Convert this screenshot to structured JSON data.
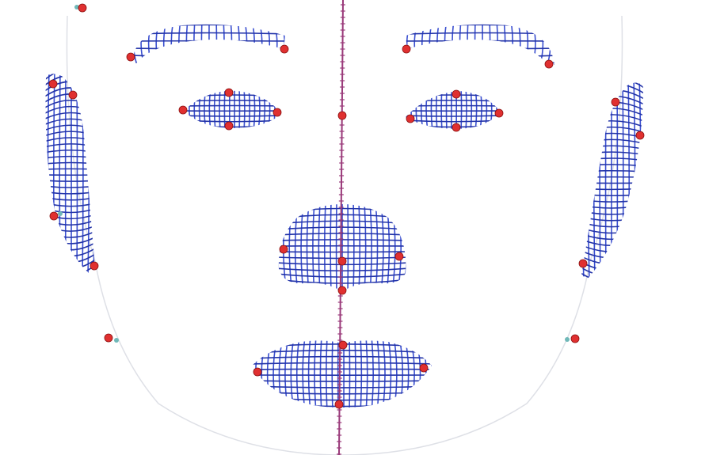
{
  "figure": {
    "subject": "face-mesh-landmarks",
    "mesh_color": "#3a4fd0",
    "mesh_dark": "#2233a8",
    "landmark_color": "#e03030",
    "landmark_stroke": "#8a1010",
    "midline_color": "#9a3a7a",
    "outline_color": "#c8ccd6",
    "aux_marker_color": "#6fb8b8"
  },
  "regions": [
    {
      "name": "left-eyebrow",
      "kind": "brow"
    },
    {
      "name": "right-eyebrow",
      "kind": "brow"
    },
    {
      "name": "left-eye",
      "kind": "eye"
    },
    {
      "name": "right-eye",
      "kind": "eye"
    },
    {
      "name": "left-ear",
      "kind": "ear"
    },
    {
      "name": "right-ear",
      "kind": "ear"
    },
    {
      "name": "nose",
      "kind": "nose"
    },
    {
      "name": "lips",
      "kind": "lips"
    }
  ],
  "landmarks": [
    {
      "name": "forehead-top-left"
    },
    {
      "name": "left-brow-outer"
    },
    {
      "name": "left-brow-inner"
    },
    {
      "name": "right-brow-inner"
    },
    {
      "name": "right-brow-outer"
    },
    {
      "name": "left-eye-outer"
    },
    {
      "name": "left-eye-top"
    },
    {
      "name": "left-eye-inner"
    },
    {
      "name": "left-eye-bottom"
    },
    {
      "name": "right-eye-inner"
    },
    {
      "name": "right-eye-top"
    },
    {
      "name": "right-eye-outer"
    },
    {
      "name": "right-eye-bottom"
    },
    {
      "name": "nasion"
    },
    {
      "name": "left-ear-top"
    },
    {
      "name": "left-ear-upper"
    },
    {
      "name": "left-ear-mid"
    },
    {
      "name": "left-ear-lobe"
    },
    {
      "name": "right-ear-top"
    },
    {
      "name": "right-ear-upper"
    },
    {
      "name": "right-ear-lobe"
    },
    {
      "name": "nose-left-ala"
    },
    {
      "name": "nose-tip"
    },
    {
      "name": "nose-right-ala"
    },
    {
      "name": "subnasale"
    },
    {
      "name": "left-jaw"
    },
    {
      "name": "right-jaw"
    },
    {
      "name": "upper-lip"
    },
    {
      "name": "mouth-left-corner"
    },
    {
      "name": "mouth-right-corner"
    },
    {
      "name": "lower-lip"
    }
  ]
}
